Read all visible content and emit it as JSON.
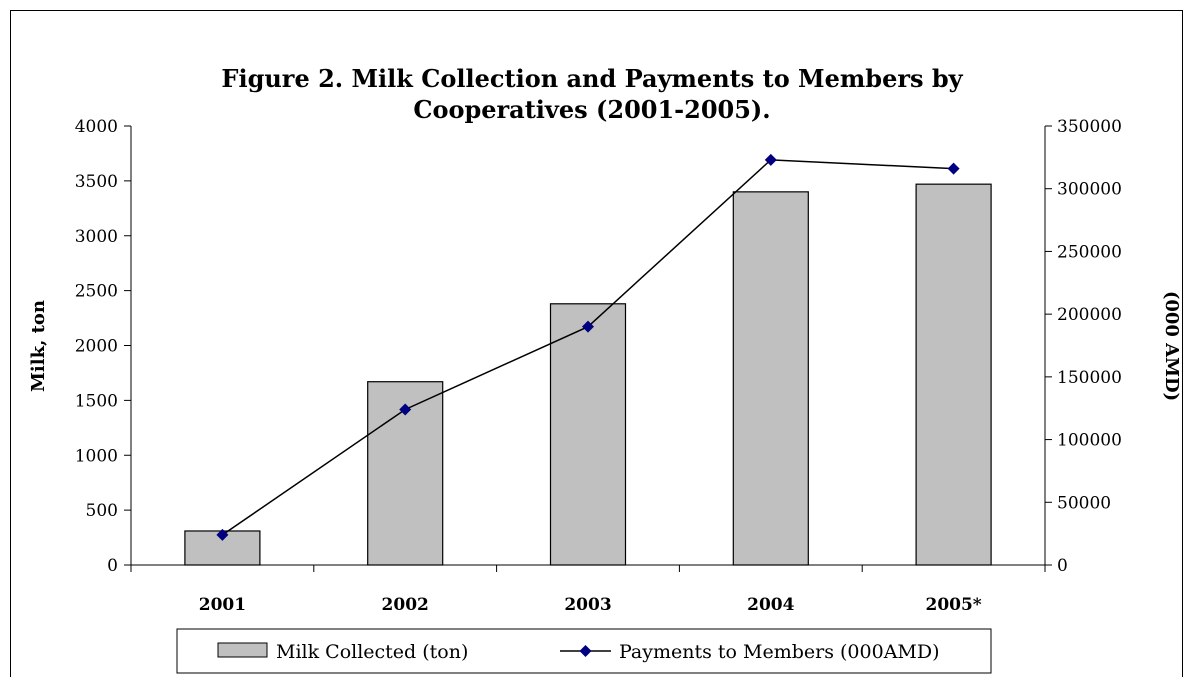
{
  "chart_data": {
    "type": "bar",
    "title_line1": "Figure 2. Milk Collection and Payments to Members by",
    "title_line2": "Cooperatives (2001-2005).",
    "categories": [
      "2001",
      "2002",
      "2003",
      "2004",
      "2005*"
    ],
    "ylabel": "Milk, ton",
    "y2label": "(000 AMD)",
    "ylim": [
      0,
      4000
    ],
    "y2lim": [
      0,
      350000
    ],
    "y_ticks": [
      0,
      500,
      1000,
      1500,
      2000,
      2500,
      3000,
      3500,
      4000
    ],
    "y2_ticks": [
      0,
      50000,
      100000,
      150000,
      200000,
      250000,
      300000,
      350000
    ],
    "grid": false,
    "legend_position": "bottom",
    "series": [
      {
        "name": "Milk Collected (ton)",
        "type": "bar",
        "axis": "left",
        "color": "#c0c0c0",
        "values": [
          310,
          1670,
          2380,
          3400,
          3470
        ]
      },
      {
        "name": "Payments to Members (000AMD)",
        "type": "line",
        "axis": "right",
        "color": "#000080",
        "marker": "diamond",
        "values": [
          24000,
          124000,
          190000,
          323000,
          316000
        ]
      }
    ]
  }
}
